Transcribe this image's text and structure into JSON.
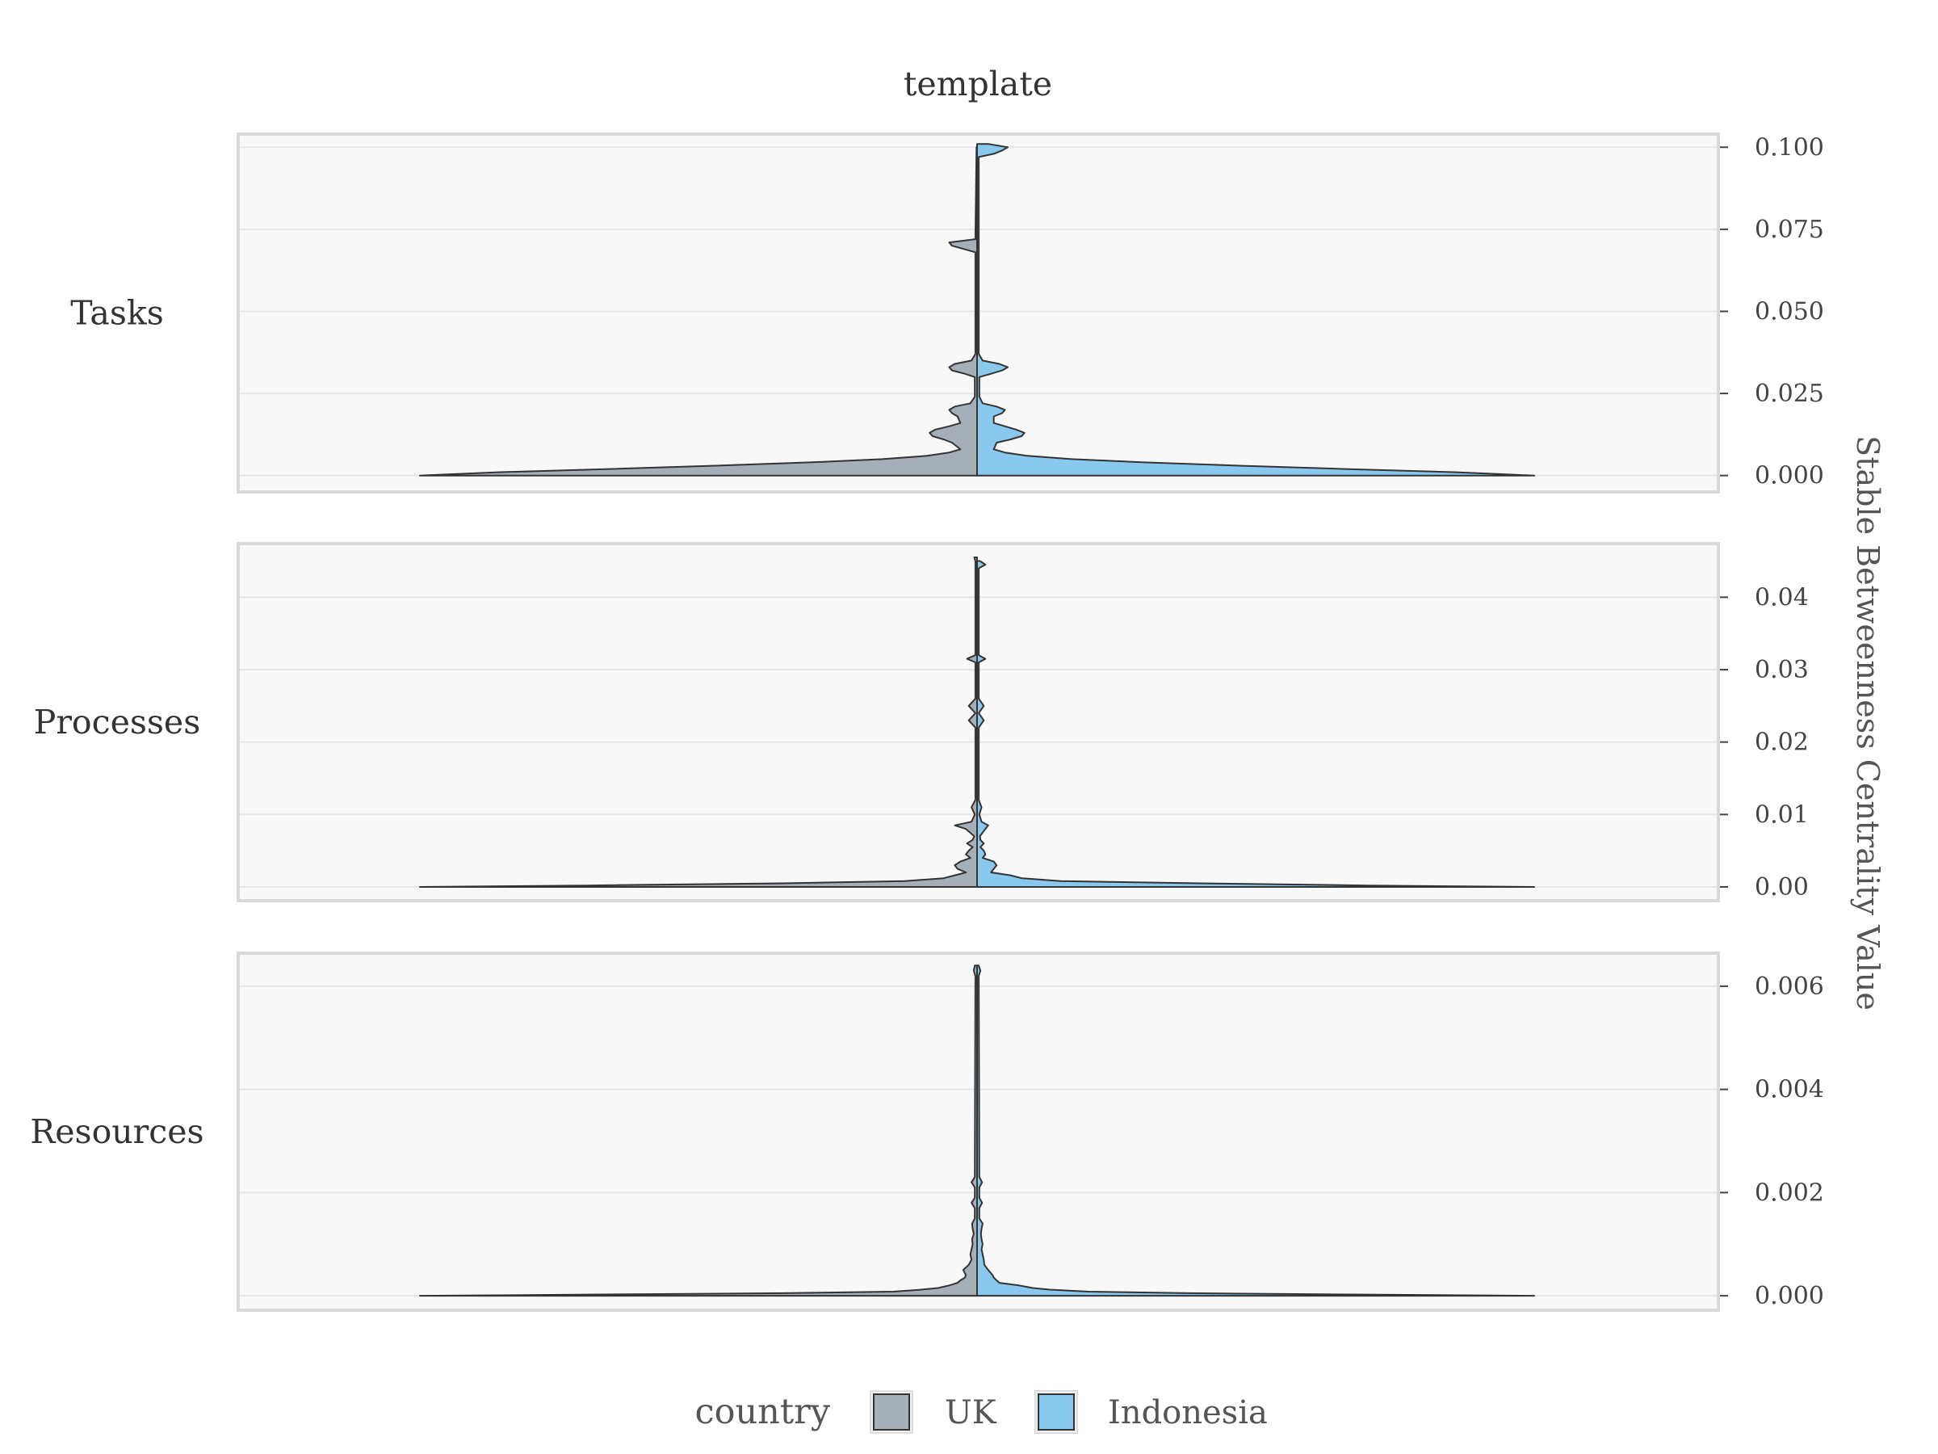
{
  "chart_data": {
    "type": "violin",
    "title": "template",
    "ylabel": "Stable Betweenness Centrality Value",
    "legend": {
      "title": "country",
      "position": "bottom",
      "entries": [
        {
          "name": "UK",
          "color": "#a6aeb8"
        },
        {
          "name": "Indonesia",
          "color": "#89c9ef"
        }
      ]
    },
    "grid": true,
    "panels": [
      {
        "label": "Tasks",
        "ylim": [
          -0.005,
          0.104
        ],
        "ticks": [
          0,
          0.025,
          0.05,
          0.075,
          0.1
        ],
        "tick_labels": [
          "0.000",
          "0.025",
          "0.050",
          "0.075",
          "0.100"
        ],
        "series": [
          {
            "name": "UK",
            "profile": [
              [
                0.0,
                1.0
              ],
              [
                0.001,
                0.86
              ],
              [
                0.002,
                0.66
              ],
              [
                0.003,
                0.47
              ],
              [
                0.004,
                0.3
              ],
              [
                0.005,
                0.17
              ],
              [
                0.006,
                0.09
              ],
              [
                0.007,
                0.05
              ],
              [
                0.008,
                0.03
              ],
              [
                0.01,
                0.045
              ],
              [
                0.011,
                0.06
              ],
              [
                0.012,
                0.08
              ],
              [
                0.013,
                0.085
              ],
              [
                0.014,
                0.075
              ],
              [
                0.015,
                0.05
              ],
              [
                0.016,
                0.03
              ],
              [
                0.018,
                0.035
              ],
              [
                0.019,
                0.045
              ],
              [
                0.02,
                0.05
              ],
              [
                0.021,
                0.04
              ],
              [
                0.022,
                0.012
              ],
              [
                0.024,
                0.004
              ],
              [
                0.03,
                0.004
              ],
              [
                0.031,
                0.022
              ],
              [
                0.032,
                0.045
              ],
              [
                0.033,
                0.05
              ],
              [
                0.034,
                0.04
              ],
              [
                0.035,
                0.01
              ],
              [
                0.037,
                0.003
              ],
              [
                0.068,
                0.003
              ],
              [
                0.07,
                0.045
              ],
              [
                0.071,
                0.05
              ],
              [
                0.072,
                0.003
              ],
              [
                0.1,
                0.001
              ]
            ]
          },
          {
            "name": "Indonesia",
            "profile": [
              [
                0.0,
                1.0
              ],
              [
                0.001,
                0.86
              ],
              [
                0.002,
                0.66
              ],
              [
                0.003,
                0.47
              ],
              [
                0.004,
                0.3
              ],
              [
                0.005,
                0.17
              ],
              [
                0.006,
                0.09
              ],
              [
                0.007,
                0.05
              ],
              [
                0.008,
                0.03
              ],
              [
                0.01,
                0.035
              ],
              [
                0.011,
                0.06
              ],
              [
                0.012,
                0.08
              ],
              [
                0.013,
                0.085
              ],
              [
                0.014,
                0.07
              ],
              [
                0.015,
                0.05
              ],
              [
                0.016,
                0.03
              ],
              [
                0.018,
                0.03
              ],
              [
                0.019,
                0.045
              ],
              [
                0.02,
                0.05
              ],
              [
                0.021,
                0.035
              ],
              [
                0.022,
                0.01
              ],
              [
                0.024,
                0.004
              ],
              [
                0.03,
                0.004
              ],
              [
                0.031,
                0.025
              ],
              [
                0.032,
                0.045
              ],
              [
                0.033,
                0.055
              ],
              [
                0.034,
                0.04
              ],
              [
                0.035,
                0.01
              ],
              [
                0.037,
                0.003
              ],
              [
                0.097,
                0.003
              ],
              [
                0.098,
                0.03
              ],
              [
                0.099,
                0.045
              ],
              [
                0.1,
                0.055
              ],
              [
                0.101,
                0.02
              ]
            ]
          }
        ]
      },
      {
        "label": "Processes",
        "ylim": [
          -0.0019,
          0.0474
        ],
        "ticks": [
          0,
          0.01,
          0.02,
          0.03,
          0.04
        ],
        "tick_labels": [
          "0.00",
          "0.01",
          "0.02",
          "0.03",
          "0.04"
        ],
        "series": [
          {
            "name": "UK",
            "profile": [
              [
                0.0,
                1.0
              ],
              [
                0.0002,
                0.7
              ],
              [
                0.0005,
                0.35
              ],
              [
                0.0008,
                0.13
              ],
              [
                0.0012,
                0.06
              ],
              [
                0.0016,
                0.04
              ],
              [
                0.002,
                0.02
              ],
              [
                0.0025,
                0.035
              ],
              [
                0.003,
                0.04
              ],
              [
                0.0035,
                0.03
              ],
              [
                0.004,
                0.012
              ],
              [
                0.0045,
                0.02
              ],
              [
                0.005,
                0.015
              ],
              [
                0.0055,
                0.008
              ],
              [
                0.006,
                0.018
              ],
              [
                0.0065,
                0.008
              ],
              [
                0.007,
                0.005
              ],
              [
                0.008,
                0.02
              ],
              [
                0.0085,
                0.04
              ],
              [
                0.009,
                0.01
              ],
              [
                0.01,
                0.004
              ],
              [
                0.011,
                0.01
              ],
              [
                0.012,
                0.003
              ],
              [
                0.022,
                0.003
              ],
              [
                0.023,
                0.015
              ],
              [
                0.024,
                0.003
              ],
              [
                0.025,
                0.015
              ],
              [
                0.026,
                0.003
              ],
              [
                0.031,
                0.003
              ],
              [
                0.0315,
                0.018
              ],
              [
                0.032,
                0.003
              ],
              [
                0.045,
                0.003
              ],
              [
                0.0455,
                0.005
              ]
            ]
          },
          {
            "name": "Indonesia",
            "profile": [
              [
                0.0,
                1.0
              ],
              [
                0.0002,
                0.7
              ],
              [
                0.0005,
                0.4
              ],
              [
                0.0008,
                0.15
              ],
              [
                0.0012,
                0.08
              ],
              [
                0.0016,
                0.06
              ],
              [
                0.002,
                0.025
              ],
              [
                0.0025,
                0.03
              ],
              [
                0.003,
                0.035
              ],
              [
                0.0035,
                0.03
              ],
              [
                0.004,
                0.01
              ],
              [
                0.0045,
                0.015
              ],
              [
                0.005,
                0.012
              ],
              [
                0.0055,
                0.006
              ],
              [
                0.006,
                0.012
              ],
              [
                0.0065,
                0.006
              ],
              [
                0.007,
                0.005
              ],
              [
                0.008,
                0.015
              ],
              [
                0.0085,
                0.02
              ],
              [
                0.009,
                0.008
              ],
              [
                0.01,
                0.004
              ],
              [
                0.011,
                0.008
              ],
              [
                0.012,
                0.003
              ],
              [
                0.022,
                0.003
              ],
              [
                0.023,
                0.012
              ],
              [
                0.024,
                0.003
              ],
              [
                0.025,
                0.012
              ],
              [
                0.026,
                0.003
              ],
              [
                0.031,
                0.003
              ],
              [
                0.0315,
                0.015
              ],
              [
                0.032,
                0.003
              ],
              [
                0.044,
                0.003
              ],
              [
                0.0445,
                0.015
              ],
              [
                0.045,
                0.005
              ]
            ]
          }
        ]
      },
      {
        "label": "Resources",
        "ylim": [
          -0.00028,
          0.00664
        ],
        "ticks": [
          0,
          0.002,
          0.004,
          0.006
        ],
        "tick_labels": [
          "0.000",
          "0.002",
          "0.004",
          "0.006"
        ],
        "series": [
          {
            "name": "UK",
            "profile": [
              [
                0.0,
                1.0
              ],
              [
                2e-05,
                0.72
              ],
              [
                5e-05,
                0.35
              ],
              [
                8e-05,
                0.15
              ],
              [
                0.00012,
                0.1
              ],
              [
                0.00015,
                0.07
              ],
              [
                0.0002,
                0.05
              ],
              [
                0.00025,
                0.035
              ],
              [
                0.0003,
                0.03
              ],
              [
                0.00035,
                0.022
              ],
              [
                0.0004,
                0.02
              ],
              [
                0.0005,
                0.025
              ],
              [
                0.0006,
                0.015
              ],
              [
                0.0007,
                0.01
              ],
              [
                0.0008,
                0.012
              ],
              [
                0.0009,
                0.01
              ],
              [
                0.001,
                0.008
              ],
              [
                0.0011,
                0.009
              ],
              [
                0.0012,
                0.006
              ],
              [
                0.0013,
                0.008
              ],
              [
                0.0014,
                0.009
              ],
              [
                0.0015,
                0.004
              ],
              [
                0.0017,
                0.004
              ],
              [
                0.0018,
                0.01
              ],
              [
                0.0019,
                0.004
              ],
              [
                0.0021,
                0.004
              ],
              [
                0.0022,
                0.01
              ],
              [
                0.0023,
                0.004
              ],
              [
                0.0062,
                0.003
              ],
              [
                0.0063,
                0.006
              ],
              [
                0.0064,
                0.004
              ]
            ]
          },
          {
            "name": "Indonesia",
            "profile": [
              [
                0.0,
                1.0
              ],
              [
                2e-05,
                0.72
              ],
              [
                5e-05,
                0.38
              ],
              [
                8e-05,
                0.2
              ],
              [
                0.00012,
                0.13
              ],
              [
                0.00015,
                0.1
              ],
              [
                0.0002,
                0.075
              ],
              [
                0.00025,
                0.04
              ],
              [
                0.0003,
                0.035
              ],
              [
                0.00035,
                0.03
              ],
              [
                0.0004,
                0.028
              ],
              [
                0.0005,
                0.02
              ],
              [
                0.0006,
                0.013
              ],
              [
                0.0007,
                0.012
              ],
              [
                0.0008,
                0.01
              ],
              [
                0.0009,
                0.008
              ],
              [
                0.001,
                0.01
              ],
              [
                0.0011,
                0.008
              ],
              [
                0.0012,
                0.007
              ],
              [
                0.0013,
                0.008
              ],
              [
                0.0014,
                0.01
              ],
              [
                0.0015,
                0.004
              ],
              [
                0.0017,
                0.004
              ],
              [
                0.0018,
                0.009
              ],
              [
                0.0019,
                0.004
              ],
              [
                0.0021,
                0.004
              ],
              [
                0.0022,
                0.009
              ],
              [
                0.0023,
                0.004
              ],
              [
                0.0062,
                0.003
              ],
              [
                0.0063,
                0.006
              ],
              [
                0.0064,
                0.003
              ]
            ]
          }
        ]
      }
    ]
  }
}
